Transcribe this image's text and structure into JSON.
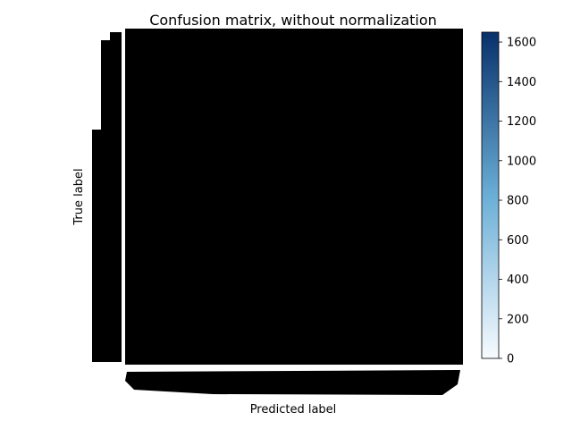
{
  "chart_data": {
    "type": "heatmap",
    "title": "Confusion matrix, without normalization",
    "xlabel": "Predicted label",
    "ylabel": "True label",
    "colormap": "Blues",
    "colors": {
      "cmap_low": "#f7fbff",
      "cmap_mid": "#6aaed6",
      "cmap_high": "#08306b",
      "cell_annotation_text": "#000000"
    },
    "colorbar": {
      "min": 0,
      "max": 1650,
      "ticks": [
        0,
        200,
        400,
        600,
        800,
        1000,
        1200,
        1400,
        1600
      ],
      "tick_labels": [
        "0",
        "200",
        "400",
        "600",
        "800",
        "1000",
        "1200",
        "1400",
        "1600"
      ]
    },
    "matrix_note": "Cell values and class tick labels are illegible — fully overlapped by black annotation text"
  }
}
